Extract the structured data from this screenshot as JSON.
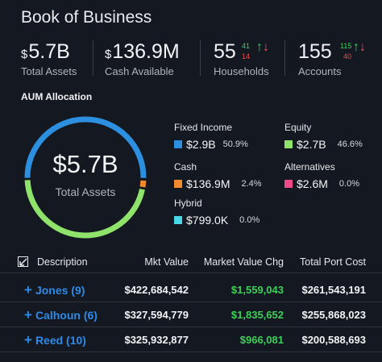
{
  "page": {
    "title": "Book of Business"
  },
  "stats": {
    "total_assets": {
      "currency": "$",
      "value": "5.7B",
      "label": "Total Assets"
    },
    "cash_available": {
      "currency": "$",
      "value": "136.9M",
      "label": "Cash Available"
    },
    "households": {
      "value": "55",
      "label": "Households",
      "delta_up": "41",
      "delta_down": "14"
    },
    "accounts": {
      "value": "155",
      "label": "Accounts",
      "delta_up": "115",
      "delta_down": "40"
    }
  },
  "aum": {
    "title": "AUM Allocation",
    "center_value": "$5.7B",
    "center_label": "Total Assets",
    "items": [
      {
        "name": "Fixed Income",
        "value": "$2.9B",
        "pct": "50.9%",
        "color": "#2d8fe0",
        "fraction": 0.509
      },
      {
        "name": "Equity",
        "value": "$2.7B",
        "pct": "46.6%",
        "color": "#8fe36a",
        "fraction": 0.466
      },
      {
        "name": "Cash",
        "value": "$136.9M",
        "pct": "2.4%",
        "color": "#f08a2c",
        "fraction": 0.024
      },
      {
        "name": "Alternatives",
        "value": "$2.6M",
        "pct": "0.0%",
        "color": "#f04a86",
        "fraction": 0.0005
      },
      {
        "name": "Hybrid",
        "value": "$799.0K",
        "pct": "0.0%",
        "color": "#49d8e8",
        "fraction": 0.0005
      }
    ]
  },
  "table": {
    "headers": {
      "description": "Description",
      "mkt_value": "Mkt Value",
      "market_value_chg": "Market Value Chg",
      "total_port_cost": "Total Port Cost"
    },
    "rows": [
      {
        "name": "Jones (9)",
        "mkt_value": "$422,684,542",
        "chg": "$1,559,043",
        "cost": "$261,543,191"
      },
      {
        "name": "Calhoun (6)",
        "mkt_value": "$327,594,779",
        "chg": "$1,835,652",
        "cost": "$255,868,023"
      },
      {
        "name": "Reed (10)",
        "mkt_value": "$325,932,877",
        "chg": "$966,081",
        "cost": "$200,588,693"
      }
    ]
  }
}
